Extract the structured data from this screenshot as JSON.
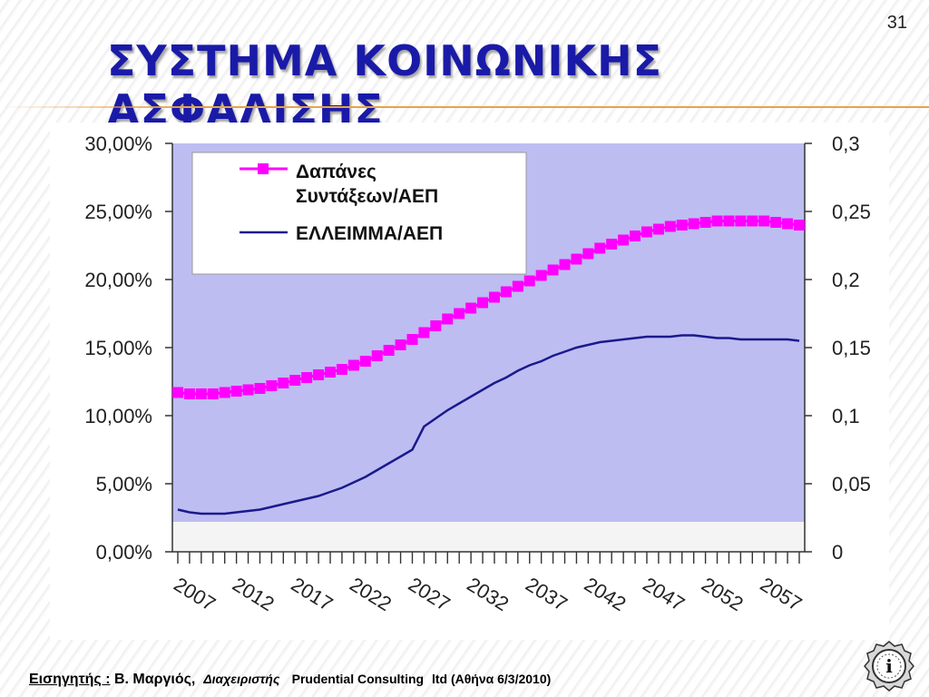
{
  "slide": {
    "number": "31",
    "title": "ΣΥΣΤΗΜΑ ΚΟΙΝΩΝΙΚΗΣ ΑΣΦΑΛΙΣΗΣ"
  },
  "footer": {
    "presenter_label": "Εισηγητής :",
    "presenter_name": "Β. Μαργιός,",
    "role": "Διαχειριστής",
    "company": "Prudential Consulting",
    "details": "ltd (Αθήνα 6/3/2010)"
  },
  "colors": {
    "title": "#1a1aa8",
    "plot_bg": "#bdbdf2",
    "series_pension": "#ff00ff",
    "series_deficit": "#1a1a8c",
    "rule": "#e9a24a"
  },
  "logo_icon": "info-seal-icon",
  "chart_data": {
    "type": "line",
    "x": [
      2007,
      2008,
      2009,
      2010,
      2011,
      2012,
      2013,
      2014,
      2015,
      2016,
      2017,
      2018,
      2019,
      2020,
      2021,
      2022,
      2023,
      2024,
      2025,
      2026,
      2027,
      2028,
      2029,
      2030,
      2031,
      2032,
      2033,
      2034,
      2035,
      2036,
      2037,
      2038,
      2039,
      2040,
      2041,
      2042,
      2043,
      2044,
      2045,
      2046,
      2047,
      2048,
      2049,
      2050,
      2051,
      2052,
      2053,
      2054,
      2055,
      2056,
      2057,
      2058,
      2059,
      2060
    ],
    "x_tick_labels": [
      "2007",
      "2012",
      "2017",
      "2022",
      "2027",
      "2032",
      "2037",
      "2042",
      "2047",
      "2052",
      "2057"
    ],
    "y_left_tick_labels": [
      "0,00%",
      "5,00%",
      "10,00%",
      "15,00%",
      "20,00%",
      "25,00%",
      "30,00%"
    ],
    "y_right_tick_labels": [
      "0",
      "0,05",
      "0,1",
      "0,15",
      "0,2",
      "0,25",
      "0,3"
    ],
    "ylim_left": [
      0,
      30
    ],
    "ylim_right": [
      0,
      0.3
    ],
    "legend_position": "top-left",
    "series": [
      {
        "name": "Δαπάνες Συντάξεων/ΑΕΠ",
        "axis": "left",
        "marker": "square",
        "values": [
          11.7,
          11.6,
          11.6,
          11.6,
          11.7,
          11.8,
          11.9,
          12.0,
          12.2,
          12.4,
          12.6,
          12.8,
          13.0,
          13.2,
          13.4,
          13.7,
          14.0,
          14.4,
          14.8,
          15.2,
          15.6,
          16.1,
          16.6,
          17.1,
          17.5,
          17.9,
          18.3,
          18.7,
          19.1,
          19.5,
          19.9,
          20.3,
          20.7,
          21.1,
          21.5,
          21.9,
          22.3,
          22.6,
          22.9,
          23.2,
          23.5,
          23.7,
          23.9,
          24.0,
          24.1,
          24.2,
          24.3,
          24.3,
          24.3,
          24.3,
          24.3,
          24.2,
          24.1,
          24.0
        ]
      },
      {
        "name": "ΕΛΛΕΙΜΜΑ/ΑΕΠ",
        "axis": "right",
        "marker": "none",
        "values": [
          0.031,
          0.029,
          0.028,
          0.028,
          0.028,
          0.029,
          0.03,
          0.031,
          0.033,
          0.035,
          0.037,
          0.039,
          0.041,
          0.044,
          0.047,
          0.051,
          0.055,
          0.06,
          0.065,
          0.07,
          0.075,
          0.092,
          0.098,
          0.104,
          0.109,
          0.114,
          0.119,
          0.124,
          0.128,
          0.133,
          0.137,
          0.14,
          0.144,
          0.147,
          0.15,
          0.152,
          0.154,
          0.155,
          0.156,
          0.157,
          0.158,
          0.158,
          0.158,
          0.159,
          0.159,
          0.158,
          0.157,
          0.157,
          0.156,
          0.156,
          0.156,
          0.156,
          0.156,
          0.155
        ]
      }
    ]
  }
}
